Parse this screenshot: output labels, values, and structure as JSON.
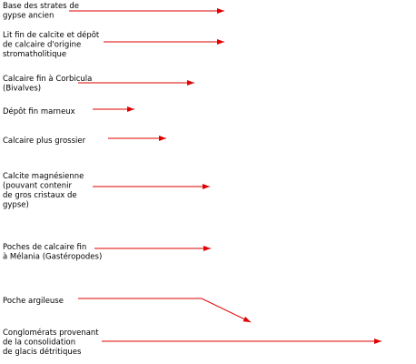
{
  "labels": [
    {
      "lines": [
        "Base des strates de",
        "gypse ancien"
      ]
    },
    {
      "lines": [
        "Lit fin de calcite et dépôt",
        "de calcaire d'origine",
        "stromatholitique"
      ]
    },
    {
      "lines": [
        "Calcaire fin à Corbicula",
        "(Bivalves)"
      ]
    },
    {
      "lines": [
        "Dépôt fin marneux"
      ]
    },
    {
      "lines": [
        "Calcaire plus grossier"
      ]
    },
    {
      "lines": [
        "Calcite magnésienne",
        "(pouvant contenir",
        "de gros cristaux de",
        "gypse)"
      ]
    },
    {
      "lines": [
        "Poches de calcaire fin",
        "à Mélania (Gastéropodes)"
      ]
    },
    {
      "lines": [
        "Poche argileuse"
      ]
    },
    {
      "lines": [
        "Conglomérats provenant",
        "de la consolidation",
        "de glacis détritiques"
      ]
    }
  ]
}
